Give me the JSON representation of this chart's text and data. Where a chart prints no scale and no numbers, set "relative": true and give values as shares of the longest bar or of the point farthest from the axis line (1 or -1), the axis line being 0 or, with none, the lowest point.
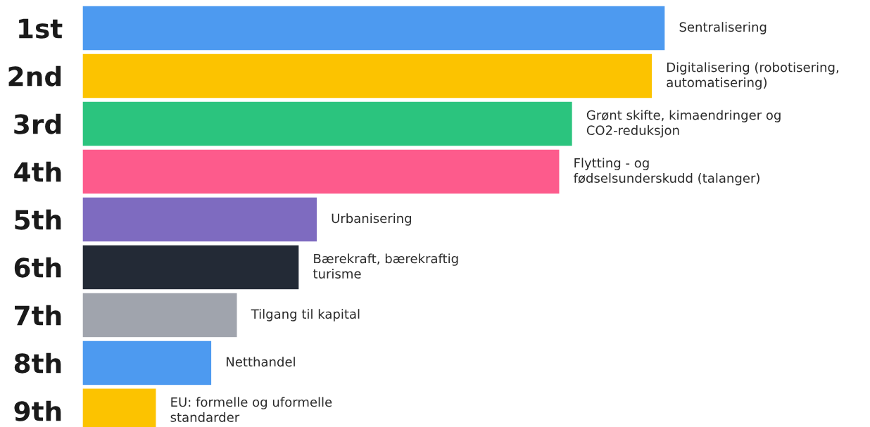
{
  "chart_data": {
    "type": "bar",
    "orientation": "horizontal",
    "relative": true,
    "categories": [
      "1st",
      "2nd",
      "3rd",
      "4th",
      "5th",
      "6th",
      "7th",
      "8th",
      "9th"
    ],
    "values": [
      1.0,
      0.978,
      0.841,
      0.819,
      0.403,
      0.372,
      0.266,
      0.222,
      0.127
    ],
    "colors": [
      "#4d9af0",
      "#fcc300",
      "#2bc47e",
      "#fd5b8c",
      "#7e6bc0",
      "#232a36",
      "#a0a4ad",
      "#4d9af0",
      "#fcc300"
    ],
    "annotations": [
      {
        "text": "Sentralisering",
        "x": 1.0,
        "y": "1st"
      },
      {
        "text": "Digitalisering (robotisering,\nautomatisering)",
        "x": 0.978,
        "y": "2nd"
      },
      {
        "text": "Grønt skifte, kimaendringer og\nCO2-reduksjon",
        "x": 0.841,
        "y": "3rd"
      },
      {
        "text": "Flytting - og\nfødselsunderskudd (talanger)",
        "x": 0.819,
        "y": "4th"
      },
      {
        "text": "Urbanisering",
        "x": 0.403,
        "y": "5th"
      },
      {
        "text": "Bærekraft, bærekraftig\nturisme",
        "x": 0.372,
        "y": "6th"
      },
      {
        "text": "Tilgang til kapital",
        "x": 0.266,
        "y": "7th"
      },
      {
        "text": "Netthandel",
        "x": 0.222,
        "y": "8th"
      },
      {
        "text": "EU: formelle og uformelle\nstandarder",
        "x": 0.127,
        "y": "9th"
      }
    ],
    "grid": false
  }
}
